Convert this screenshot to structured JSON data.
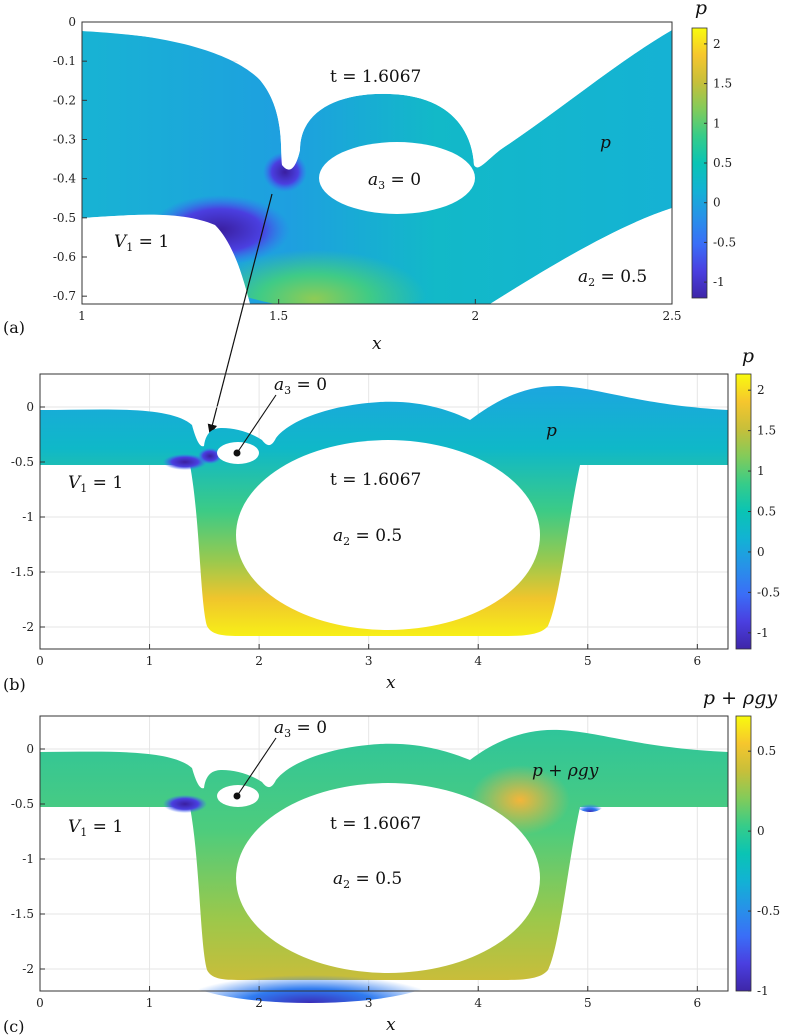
{
  "colors": {
    "cmap": [
      "#3e26a8",
      "#4a3fe0",
      "#3a6ef7",
      "#2792e8",
      "#12b2d4",
      "#0ac4b4",
      "#36cc89",
      "#82cb5a",
      "#c7bf3a",
      "#f6c62d",
      "#f9fb0e"
    ],
    "grid": "#e6e6e6",
    "axis": "#333333"
  },
  "chart_data": [
    {
      "panel": "(a)",
      "type": "heatmap",
      "title": "",
      "xlabel": "x",
      "ylabel": "",
      "xlim": [
        1,
        2.5
      ],
      "ylim": [
        -0.72,
        0
      ],
      "xticks": [
        "1",
        "1.5",
        "2",
        "2.5"
      ],
      "yticks": [
        "0",
        "-0.1",
        "-0.2",
        "-0.3",
        "-0.4",
        "-0.5",
        "-0.6",
        "-0.7"
      ],
      "colorbar": {
        "label": "p",
        "ticks": [
          "2",
          "1.5",
          "1",
          "0.5",
          "0",
          "-0.5",
          "-1"
        ],
        "range": [
          -1.2,
          2.2
        ]
      },
      "annotations": [
        "t = 1.6067",
        "a3 = 0",
        "V1 = 1",
        "a2 = 0.5",
        "p"
      ]
    },
    {
      "panel": "(b)",
      "type": "heatmap",
      "title": "",
      "xlabel": "x",
      "ylabel": "",
      "xlim": [
        0,
        6.28
      ],
      "ylim": [
        -2.2,
        0.3
      ],
      "xticks": [
        "0",
        "1",
        "2",
        "3",
        "4",
        "5",
        "6"
      ],
      "yticks": [
        "0",
        "-0.5",
        "-1",
        "-1.5",
        "-2"
      ],
      "colorbar": {
        "label": "p",
        "ticks": [
          "2",
          "1.5",
          "1",
          "0.5",
          "0",
          "-0.5",
          "-1"
        ],
        "range": [
          -1.2,
          2.2
        ]
      },
      "annotations": [
        "a3 = 0",
        "V1 = 1",
        "t = 1.6067",
        "a2 = 0.5",
        "p"
      ]
    },
    {
      "panel": "(c)",
      "type": "heatmap",
      "title": "",
      "xlabel": "x",
      "ylabel": "",
      "xlim": [
        0,
        6.28
      ],
      "ylim": [
        -2.2,
        0.3
      ],
      "xticks": [
        "0",
        "1",
        "2",
        "3",
        "4",
        "5",
        "6"
      ],
      "yticks": [
        "0",
        "-0.5",
        "-1",
        "-1.5",
        "-2"
      ],
      "colorbar": {
        "label": "p + ρgy",
        "ticks": [
          "0.5",
          "0",
          "-0.5",
          "-1"
        ],
        "range": [
          -1.0,
          0.72
        ]
      },
      "annotations": [
        "a3 = 0",
        "V1 = 1",
        "t = 1.6067",
        "a2 = 0.5",
        "p + ρgy"
      ]
    }
  ],
  "labels": {
    "panel_a": "(a)",
    "panel_b": "(b)",
    "panel_c": "(c)",
    "xlabel": "x",
    "t_value": "t = 1.6067",
    "a3": "a",
    "a3_sub": "3",
    "a3_val": " = 0",
    "V1": "V",
    "V1_sub": "1",
    "V1_val": " = 1",
    "a2": "a",
    "a2_sub": "2",
    "a2_val": " = 0.5",
    "p": "p",
    "p_rho": "p + ρgy"
  }
}
